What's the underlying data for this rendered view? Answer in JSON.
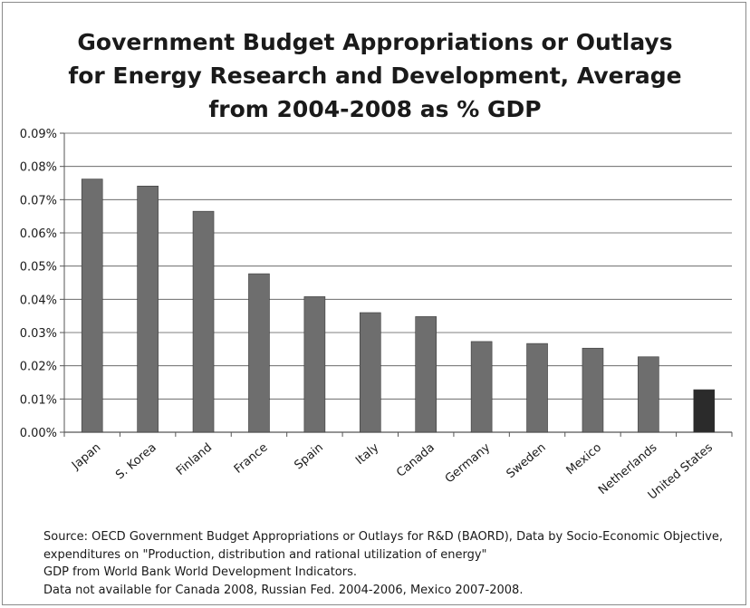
{
  "title_lines": [
    "Government Budget Appropriations or Outlays",
    "for  Energy Research and Development, Average",
    "from 2004-2008 as % GDP"
  ],
  "source_lines": [
    "Source: OECD Government Budget Appropriations or Outlays for R&D (BAORD), Data by Socio-Economic Objective,",
    "expenditures on \"Production, distribution and rational utilization of energy\"",
    "GDP from World Bank World Development Indicators.",
    "Data not available for Canada 2008, Russian Fed. 2004-2006, Mexico 2007-2008."
  ],
  "colors": {
    "bar": "#6e6e6e",
    "highlight_bar": "#2b2b2b",
    "grid": "#555555"
  },
  "chart_data": {
    "type": "bar",
    "title": "Government Budget Appropriations or Outlays for  Energy Research and Development, Average from 2004-2008 as % GDP",
    "categories": [
      "Japan",
      "S. Korea",
      "Finland",
      "France",
      "Spain",
      "Italy",
      "Canada",
      "Germany",
      "Sweden",
      "Mexico",
      "Netherlands",
      "United States"
    ],
    "values": [
      0.0762,
      0.0741,
      0.0665,
      0.0477,
      0.0408,
      0.036,
      0.0348,
      0.0273,
      0.0267,
      0.0253,
      0.0227,
      0.0128
    ],
    "highlight": "United States",
    "ylim": [
      0,
      0.09
    ],
    "yticks": [
      "0.00%",
      "0.01%",
      "0.02%",
      "0.03%",
      "0.04%",
      "0.05%",
      "0.06%",
      "0.07%",
      "0.08%",
      "0.09%"
    ],
    "y_unit": "%",
    "grid": true,
    "legend": "none"
  }
}
